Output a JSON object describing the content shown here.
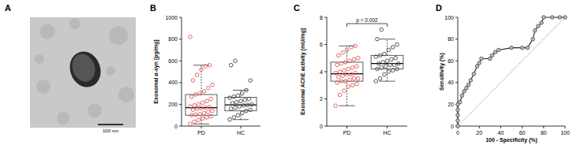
{
  "chart_data": [
    {
      "type": "image",
      "title": "A",
      "scale_bar": "100 nm"
    },
    {
      "type": "box",
      "title": "B",
      "ylabel": "Exosomal α-syn [pg/mg]",
      "categories": [
        "PD",
        "HC"
      ],
      "colors": [
        "#e05a5a",
        "#444444"
      ],
      "ylim": [
        0,
        1000
      ],
      "yticks": [
        0,
        200,
        400,
        600,
        800,
        1000
      ],
      "points": [
        [
          20,
          40,
          55,
          70,
          80,
          90,
          100,
          105,
          110,
          120,
          130,
          140,
          150,
          160,
          165,
          170,
          175,
          180,
          190,
          200,
          215,
          230,
          250,
          270,
          290,
          300,
          320,
          350,
          380,
          420,
          470,
          520,
          550,
          560,
          820
        ],
        [
          60,
          80,
          100,
          120,
          140,
          150,
          160,
          170,
          180,
          190,
          195,
          200,
          210,
          220,
          230,
          240,
          250,
          260,
          270,
          280,
          300,
          330,
          420,
          560,
          600
        ]
      ],
      "boxes": [
        {
          "min": 20,
          "q1": 100,
          "median": 170,
          "q3": 290,
          "max": 560
        },
        {
          "min": 60,
          "q1": 140,
          "median": 195,
          "q3": 265,
          "max": 330
        }
      ]
    },
    {
      "type": "box",
      "title": "C",
      "ylabel": "Exosomal AChE activity [mU/mg]",
      "categories": [
        "PD",
        "HC"
      ],
      "colors": [
        "#e05a5a",
        "#444444"
      ],
      "ylim": [
        0,
        8
      ],
      "yticks": [
        0,
        2,
        4,
        6,
        8
      ],
      "annotations": [
        {
          "text": "p = 0.002"
        }
      ],
      "points": [
        [
          1.5,
          2.3,
          2.6,
          2.9,
          3.0,
          3.1,
          3.2,
          3.3,
          3.3,
          3.4,
          3.5,
          3.5,
          3.6,
          3.7,
          3.8,
          3.8,
          3.9,
          3.9,
          4.0,
          4.1,
          4.2,
          4.3,
          4.4,
          4.5,
          4.6,
          4.7,
          4.8,
          4.9,
          5.0,
          5.2,
          5.4,
          5.6,
          5.8,
          5.9
        ],
        [
          3.3,
          3.5,
          3.8,
          4.0,
          4.1,
          4.2,
          4.2,
          4.3,
          4.4,
          4.5,
          4.5,
          4.6,
          4.6,
          4.7,
          4.8,
          4.9,
          5.0,
          5.1,
          5.2,
          5.3,
          5.6,
          5.8,
          6.0,
          6.4,
          7.1
        ]
      ],
      "boxes": [
        {
          "min": 1.5,
          "q1": 3.3,
          "median": 3.85,
          "q3": 4.7,
          "max": 5.9
        },
        {
          "min": 3.3,
          "q1": 4.2,
          "median": 4.6,
          "q3": 5.2,
          "max": 6.4
        }
      ]
    },
    {
      "type": "line",
      "title": "D",
      "xlabel": "100 - Specificity (%)",
      "ylabel": "Sensitivity (%)",
      "color": "#222222",
      "marker": "circle",
      "xlim": [
        0,
        100
      ],
      "ylim": [
        0,
        100
      ],
      "xticks": [
        0,
        20,
        40,
        60,
        80,
        100
      ],
      "yticks": [
        0,
        20,
        40,
        60,
        80,
        100
      ],
      "x": [
        0,
        0,
        0,
        0,
        0,
        2,
        4,
        6,
        8,
        10,
        12,
        15,
        18,
        20,
        22,
        30,
        32,
        35,
        38,
        50,
        60,
        65,
        70,
        72,
        75,
        78,
        80,
        88,
        95,
        100
      ],
      "values": [
        0,
        5,
        10,
        15,
        20,
        22,
        28,
        32,
        35,
        38,
        42,
        48,
        55,
        58,
        62,
        62,
        65,
        68,
        70,
        72,
        72,
        72,
        80,
        88,
        92,
        95,
        100,
        100,
        100,
        100
      ],
      "reference": {
        "x": [
          0,
          100
        ],
        "values": [
          0,
          100
        ],
        "color": "#e05a5a",
        "line_style": "dotted"
      }
    }
  ]
}
